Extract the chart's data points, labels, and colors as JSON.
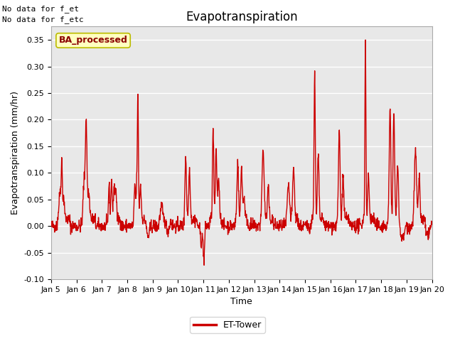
{
  "title": "Evapotranspiration",
  "xlabel": "Time",
  "ylabel": "Evapotranspiration (mm/hr)",
  "ylim": [
    -0.1,
    0.375
  ],
  "yticks": [
    -0.1,
    -0.05,
    0.0,
    0.05,
    0.1,
    0.15,
    0.2,
    0.25,
    0.3,
    0.35
  ],
  "xtick_labels": [
    "Jan 5",
    "Jan 6",
    "Jan 7",
    "Jan 8",
    "Jan 9",
    "Jan 10",
    "Jan 11",
    "Jan 12",
    "Jan 13",
    "Jan 14",
    "Jan 15",
    "Jan 16",
    "Jan 17",
    "Jan 18",
    "Jan 19",
    "Jan 20"
  ],
  "line_color": "#cc0000",
  "line_width": 1.0,
  "legend_label": "ET-Tower",
  "top_left_text_line1": "No data for f_et",
  "top_left_text_line2": "No data for f_etc",
  "box_label": "BA_processed",
  "fig_bg_color": "#ffffff",
  "plot_bg_color": "#e8e8e8",
  "grid_color": "#ffffff",
  "title_fontsize": 12,
  "label_fontsize": 9,
  "tick_fontsize": 8,
  "legend_fontsize": 9
}
